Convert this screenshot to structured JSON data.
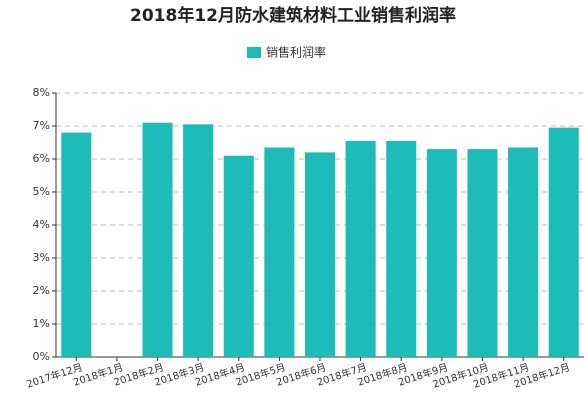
{
  "chart_data": {
    "type": "bar",
    "title": "2018年12月防水建筑材料工业销售利润率",
    "categories": [
      "2017年12月",
      "2018年1月",
      "2018年2月",
      "2018年3月",
      "2018年4月",
      "2018年5月",
      "2018年6月",
      "2018年7月",
      "2018年8月",
      "2018年9月",
      "2018年10月",
      "2018年11月",
      "2018年12月"
    ],
    "series": [
      {
        "name": "销售利润率",
        "color": "#1ebcb8",
        "values": [
          6.8,
          null,
          7.1,
          7.05,
          6.1,
          6.35,
          6.2,
          6.55,
          6.55,
          6.3,
          6.3,
          6.35,
          6.95
        ]
      }
    ],
    "ylim": [
      0,
      8
    ],
    "yticks": [
      {
        "value": 0,
        "label": "0%"
      },
      {
        "value": 1,
        "label": "1%"
      },
      {
        "value": 2,
        "label": "2%"
      },
      {
        "value": 3,
        "label": "3%"
      },
      {
        "value": 4,
        "label": "4%"
      },
      {
        "value": 5,
        "label": "5%"
      },
      {
        "value": 6,
        "label": "6%"
      },
      {
        "value": 7,
        "label": "7%"
      },
      {
        "value": 8,
        "label": "8%"
      }
    ],
    "grid": true
  }
}
